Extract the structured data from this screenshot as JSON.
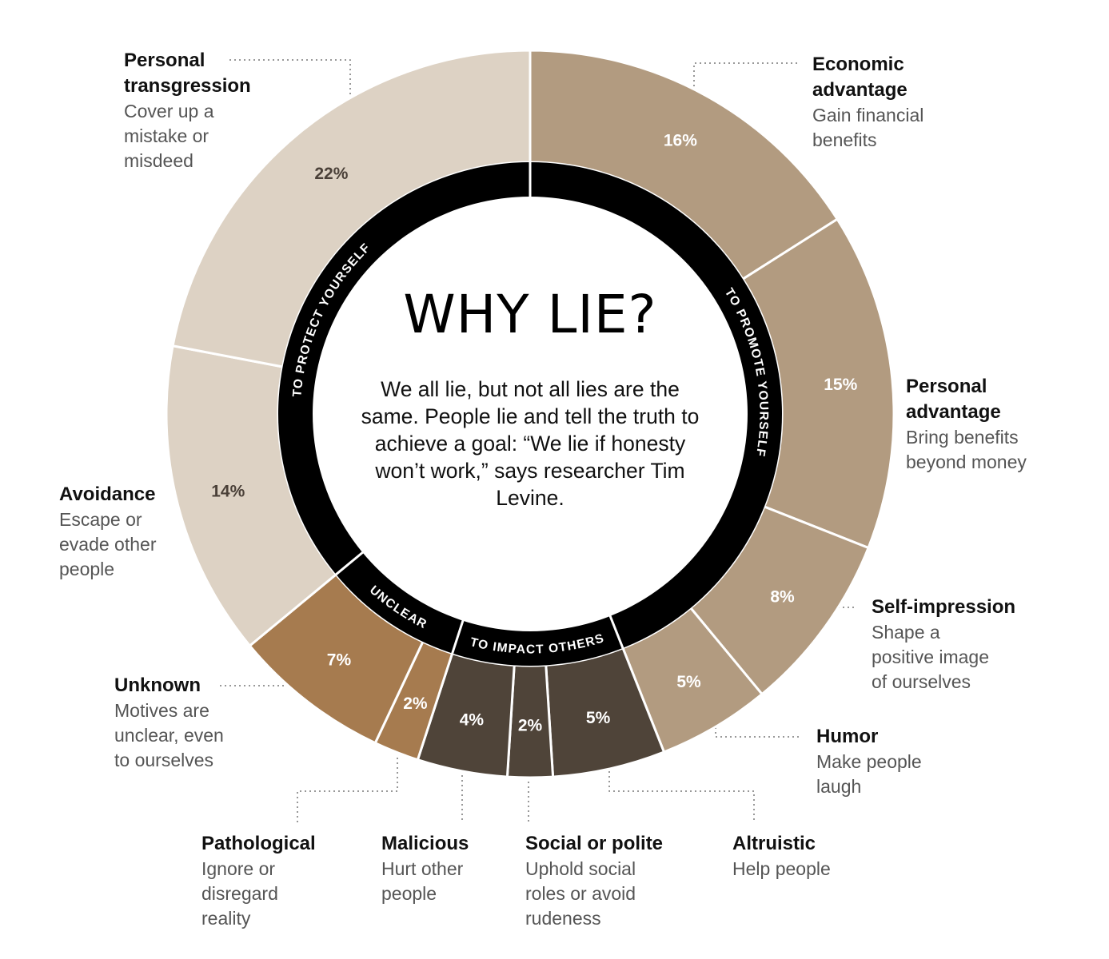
{
  "center": {
    "title": "WHY LIE?",
    "text": "We all lie, but not all lies are the same. People lie and tell the truth to achieve a goal: “We lie if honesty won’t work,” says researcher Tim Levine."
  },
  "colors": {
    "protect": "#ddd2c4",
    "promote": "#b29b80",
    "unclear": "#a67b4f",
    "impact": "#4f4439",
    "ring": "#000000",
    "divider": "#ffffff"
  },
  "chart_data": {
    "type": "pie",
    "variant": "donut",
    "title": "WHY LIE?",
    "segments": [
      {
        "label": "Economic advantage",
        "value": 16,
        "value_label": "16%",
        "group": "To promote yourself"
      },
      {
        "label": "Personal advantage",
        "value": 15,
        "value_label": "15%",
        "group": "To promote yourself"
      },
      {
        "label": "Self-impression",
        "value": 8,
        "value_label": "8%",
        "group": "To promote yourself"
      },
      {
        "label": "Humor",
        "value": 5,
        "value_label": "5%",
        "group": "To promote yourself"
      },
      {
        "label": "Altruistic",
        "value": 5,
        "value_label": "5%",
        "group": "To impact others"
      },
      {
        "label": "Social or polite",
        "value": 2,
        "value_label": "2%",
        "group": "To impact others"
      },
      {
        "label": "Malicious",
        "value": 4,
        "value_label": "4%",
        "group": "To impact others"
      },
      {
        "label": "Pathological",
        "value": 2,
        "value_label": "2%",
        "group": "Unclear"
      },
      {
        "label": "Unknown",
        "value": 7,
        "value_label": "7%",
        "group": "Unclear"
      },
      {
        "label": "Avoidance",
        "value": 14,
        "value_label": "14%",
        "group": "To protect yourself"
      },
      {
        "label": "Personal transgression",
        "value": 22,
        "value_label": "22%",
        "group": "To protect yourself"
      }
    ],
    "groups": [
      {
        "key": "promote",
        "label": "TO PROMOTE YOURSELF"
      },
      {
        "key": "impact",
        "label": "TO IMPACT OTHERS"
      },
      {
        "key": "unclear",
        "label": "UNCLEAR"
      },
      {
        "key": "protect",
        "label": "TO PROTECT YOURSELF"
      }
    ]
  },
  "labels": {
    "economic": {
      "title": "Economic\nadvantage",
      "desc": "Gain financial\nbenefits"
    },
    "personal_adv": {
      "title": "Personal\nadvantage",
      "desc": "Bring benefits\nbeyond money"
    },
    "self_impression": {
      "title": "Self-impression",
      "desc": "Shape a\npositive image\nof ourselves"
    },
    "humor": {
      "title": "Humor",
      "desc": "Make people\nlaugh"
    },
    "altruistic": {
      "title": "Altruistic",
      "desc": "Help people"
    },
    "social": {
      "title": "Social or polite",
      "desc": "Uphold social\nroles or avoid\nrudeness"
    },
    "malicious": {
      "title": "Malicious",
      "desc": "Hurt other\npeople"
    },
    "pathological": {
      "title": "Pathological",
      "desc": "Ignore or\ndisregard\nreality"
    },
    "unknown": {
      "title": "Unknown",
      "desc": "Motives are\nunclear, even\nto ourselves"
    },
    "avoidance": {
      "title": "Avoidance",
      "desc": "Escape or\nevade other\npeople"
    },
    "transgression": {
      "title": "Personal\ntransgression",
      "desc": "Cover up a\nmistake or\nmisdeed"
    }
  }
}
